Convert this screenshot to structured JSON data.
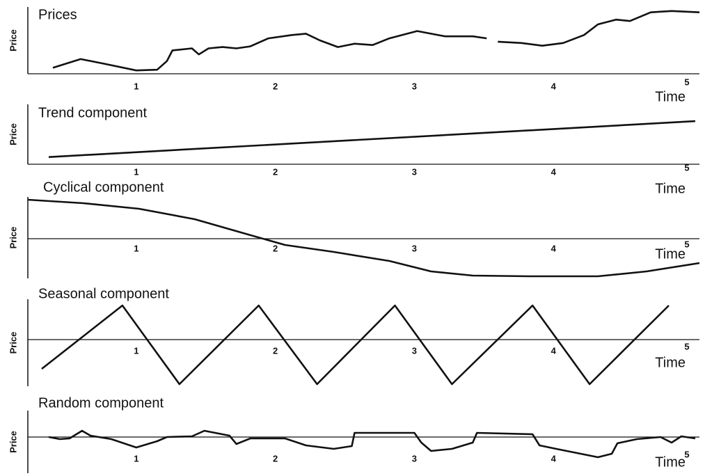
{
  "chart_data": [
    {
      "type": "line",
      "title": "Prices",
      "y_label": "Price",
      "x_label": "Time",
      "color": "#111111",
      "x": [
        0.4,
        0.6,
        0.77,
        1.0,
        1.15,
        1.22,
        1.26,
        1.4,
        1.45,
        1.52,
        1.62,
        1.72,
        1.82,
        1.95,
        2.12,
        2.22,
        2.32,
        2.45,
        2.57,
        2.7,
        2.82,
        3.02,
        3.22,
        3.42,
        3.52,
        3.56,
        3.6,
        3.77,
        3.92,
        4.07,
        4.22,
        4.32,
        4.45,
        4.55,
        4.7,
        4.85,
        5.05
      ],
      "values": [
        9,
        22,
        15,
        5,
        6,
        19,
        35,
        38,
        29,
        38,
        40,
        38,
        41,
        53,
        58,
        60,
        50,
        40,
        45,
        43,
        53,
        64,
        56,
        56,
        53,
        null,
        48,
        46,
        42,
        46,
        58,
        74,
        81,
        79,
        92,
        94,
        92
      ],
      "xlim": [
        0.22,
        5.05
      ],
      "ylim": [
        0,
        100
      ],
      "xticks": [
        1,
        2,
        3,
        4,
        5
      ]
    },
    {
      "type": "line",
      "title": "Trend component",
      "y_label": "Price",
      "x_label": "Time",
      "color": "#111111",
      "x": [
        0.37,
        5.02
      ],
      "values": [
        12,
        72
      ],
      "xlim": [
        0.22,
        5.05
      ],
      "ylim": [
        0,
        100
      ],
      "xticks": [
        1,
        2,
        3,
        4,
        5
      ]
    },
    {
      "type": "line",
      "title": "Cyclical component",
      "y_label": "Price",
      "x_label": "Time",
      "color": "#111111",
      "x": [
        0.22,
        0.62,
        1.02,
        1.42,
        1.77,
        2.07,
        2.42,
        2.82,
        3.12,
        3.42,
        3.82,
        4.32,
        4.67,
        5.05
      ],
      "values": [
        56,
        51,
        43,
        28,
        8,
        -9,
        -19,
        -32,
        -47,
        -53,
        -54,
        -54,
        -47,
        -35
      ],
      "xlim": [
        0.22,
        5.05
      ],
      "ylim": [
        -57,
        60
      ],
      "xticks": [
        1,
        2,
        3,
        4,
        5
      ]
    },
    {
      "type": "line",
      "title": "Seasonal component",
      "y_label": "Price",
      "x_label": "Time",
      "color": "#111111",
      "x": [
        0.32,
        0.9,
        1.31,
        1.88,
        2.3,
        2.86,
        3.27,
        3.85,
        4.26,
        4.83
      ],
      "values": [
        -42,
        49,
        -64,
        49,
        -64,
        49,
        -64,
        49,
        -64,
        49
      ],
      "xlim": [
        0.22,
        5.05
      ],
      "ylim": [
        -67,
        58
      ],
      "xticks": [
        1,
        2,
        3,
        4,
        5
      ]
    },
    {
      "type": "line",
      "title": "Random component",
      "y_label": "Price",
      "x_label": "Time",
      "color": "#111111",
      "x": [
        0.37,
        0.45,
        0.52,
        0.61,
        0.67,
        0.82,
        1.0,
        1.15,
        1.22,
        1.4,
        1.49,
        1.67,
        1.72,
        1.82,
        2.07,
        2.22,
        2.42,
        2.55,
        2.57,
        3.0,
        3.05,
        3.12,
        3.27,
        3.42,
        3.45,
        3.85,
        3.9,
        4.02,
        4.32,
        4.42,
        4.46,
        4.6,
        4.77,
        4.85,
        4.92,
        5.02
      ],
      "values": [
        0,
        -3,
        -2,
        9,
        2,
        -3,
        -15,
        -6,
        0,
        1,
        9,
        2,
        -10,
        -2,
        -2,
        -12,
        -17,
        -13,
        6,
        6,
        -8,
        -20,
        -17,
        -8,
        6,
        4,
        -12,
        -17,
        -29,
        -24,
        -9,
        -3,
        0,
        -8,
        1,
        -2
      ],
      "xlim": [
        0.22,
        5.05
      ],
      "ylim": [
        -52,
        38
      ],
      "xticks": [
        1,
        2,
        3,
        4,
        5
      ]
    }
  ]
}
